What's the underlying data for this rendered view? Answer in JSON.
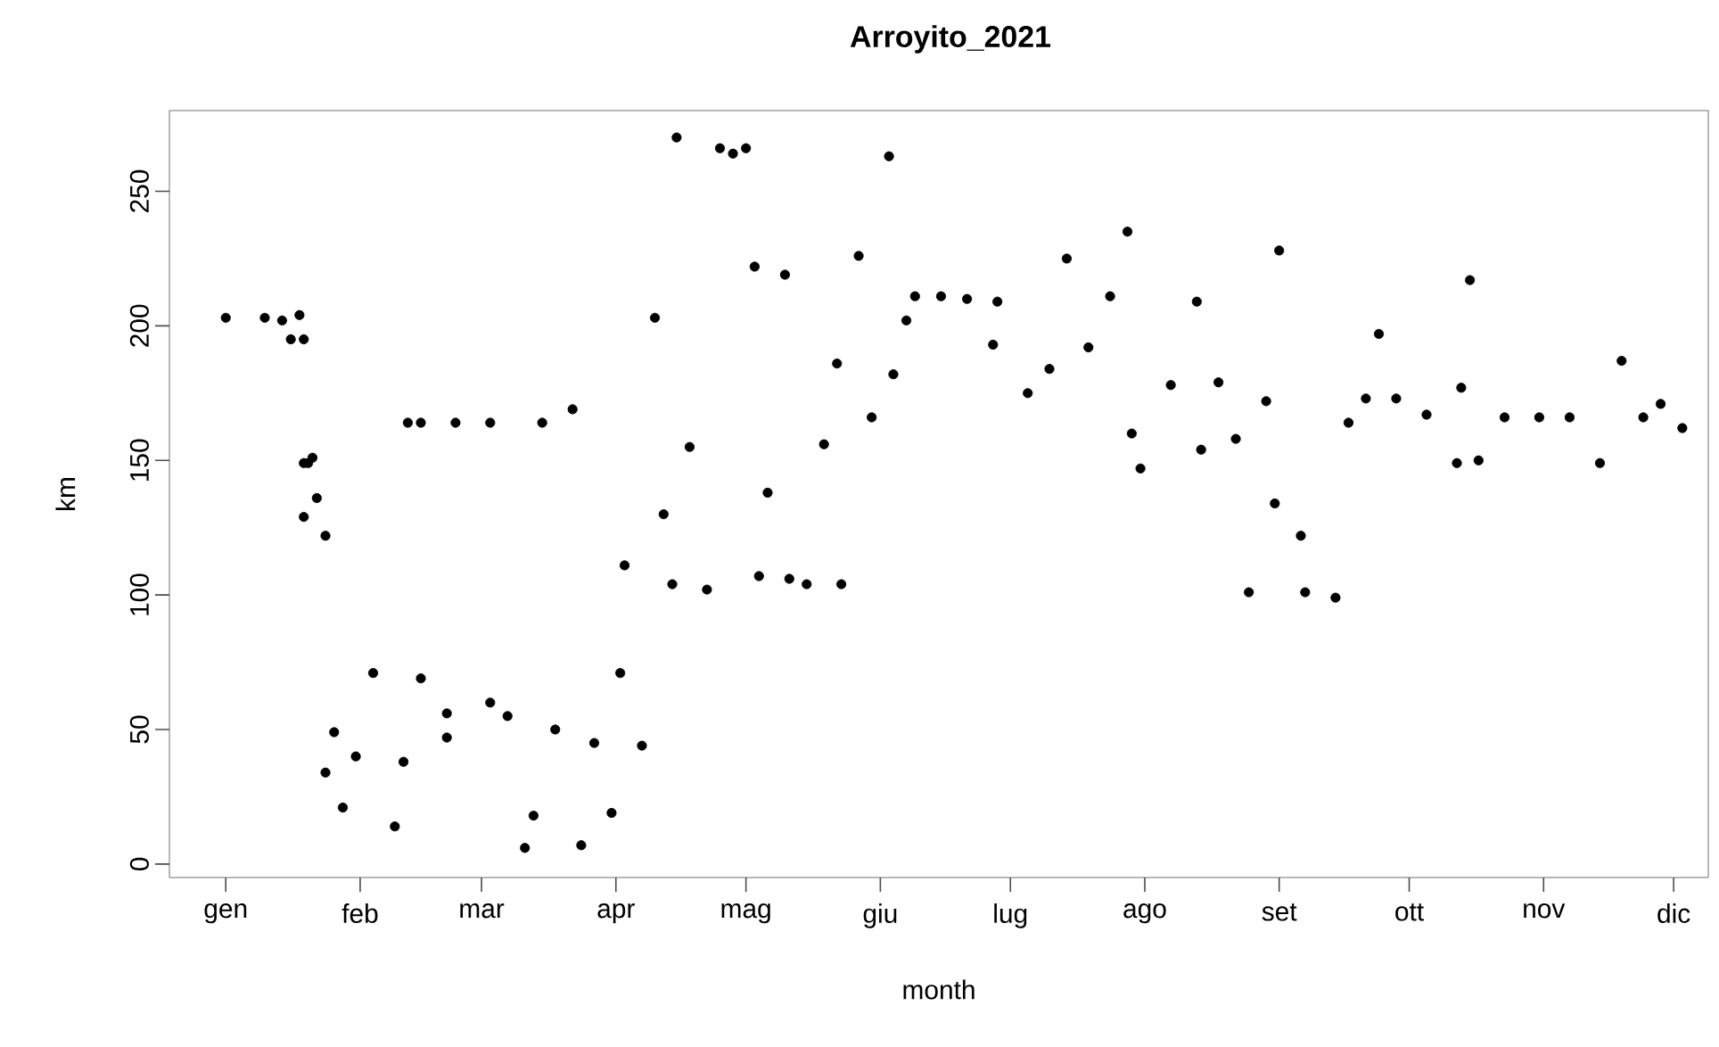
{
  "chart_data": {
    "type": "scatter",
    "title": "Arroyito_2021",
    "xlabel": "month",
    "ylabel": "km",
    "marker": "circle",
    "xlim": [
      "2020-12-19",
      "2021-12-09"
    ],
    "ylim": [
      -5,
      280
    ],
    "xticks": [
      {
        "value": "2021-01-01",
        "label": "gen"
      },
      {
        "value": "2021-02-01",
        "label": "feb"
      },
      {
        "value": "2021-03-01",
        "label": "mar"
      },
      {
        "value": "2021-04-01",
        "label": "apr"
      },
      {
        "value": "2021-05-01",
        "label": "mag"
      },
      {
        "value": "2021-06-01",
        "label": "giu"
      },
      {
        "value": "2021-07-01",
        "label": "lug"
      },
      {
        "value": "2021-08-01",
        "label": "ago"
      },
      {
        "value": "2021-09-01",
        "label": "set"
      },
      {
        "value": "2021-10-01",
        "label": "ott"
      },
      {
        "value": "2021-11-01",
        "label": "nov"
      },
      {
        "value": "2021-12-01",
        "label": "dic"
      }
    ],
    "yticks": [
      0,
      50,
      100,
      150,
      200,
      250
    ],
    "x": [
      "2021-01-01",
      "2021-01-10",
      "2021-01-14",
      "2021-01-16",
      "2021-01-18",
      "2021-01-19",
      "2021-01-19",
      "2021-01-19",
      "2021-01-20",
      "2021-01-21",
      "2021-01-22",
      "2021-01-24",
      "2021-01-24",
      "2021-01-26",
      "2021-01-28",
      "2021-01-31",
      "2021-02-04",
      "2021-02-09",
      "2021-02-11",
      "2021-02-12",
      "2021-02-15",
      "2021-02-15",
      "2021-02-21",
      "2021-02-21",
      "2021-02-23",
      "2021-03-03",
      "2021-03-03",
      "2021-03-07",
      "2021-03-11",
      "2021-03-13",
      "2021-03-15",
      "2021-03-18",
      "2021-03-22",
      "2021-03-24",
      "2021-03-27",
      "2021-03-31",
      "2021-04-02",
      "2021-04-03",
      "2021-04-07",
      "2021-04-10",
      "2021-04-12",
      "2021-04-14",
      "2021-04-15",
      "2021-04-18",
      "2021-04-22",
      "2021-04-25",
      "2021-04-28",
      "2021-05-01",
      "2021-05-03",
      "2021-05-04",
      "2021-05-06",
      "2021-05-10",
      "2021-05-11",
      "2021-05-15",
      "2021-05-19",
      "2021-05-22",
      "2021-05-23",
      "2021-05-27",
      "2021-05-30",
      "2021-06-03",
      "2021-06-04",
      "2021-06-07",
      "2021-06-09",
      "2021-06-15",
      "2021-06-21",
      "2021-06-27",
      "2021-06-28",
      "2021-07-05",
      "2021-07-10",
      "2021-07-14",
      "2021-07-19",
      "2021-07-24",
      "2021-07-28",
      "2021-07-29",
      "2021-07-31",
      "2021-08-07",
      "2021-08-13",
      "2021-08-14",
      "2021-08-18",
      "2021-08-22",
      "2021-08-25",
      "2021-08-29",
      "2021-08-31",
      "2021-09-01",
      "2021-09-06",
      "2021-09-07",
      "2021-09-14",
      "2021-09-17",
      "2021-09-21",
      "2021-09-24",
      "2021-09-28",
      "2021-10-05",
      "2021-10-12",
      "2021-10-13",
      "2021-10-15",
      "2021-10-17",
      "2021-10-23",
      "2021-10-31",
      "2021-11-07",
      "2021-11-14",
      "2021-11-19",
      "2021-11-24",
      "2021-11-28",
      "2021-12-03"
    ],
    "series": [
      {
        "color": "#000000",
        "values": [
          203,
          203,
          202,
          195,
          204,
          195,
          149,
          129,
          149,
          151,
          136,
          122,
          34,
          49,
          21,
          40,
          71,
          14,
          38,
          164,
          164,
          69,
          56,
          47,
          164,
          164,
          60,
          55,
          6,
          18,
          164,
          50,
          169,
          7,
          45,
          19,
          71,
          111,
          44,
          203,
          130,
          104,
          270,
          155,
          102,
          266,
          264,
          266,
          222,
          107,
          138,
          219,
          106,
          104,
          156,
          186,
          104,
          226,
          166,
          263,
          182,
          202,
          211,
          211,
          210,
          193,
          209,
          175,
          184,
          225,
          192,
          211,
          235,
          160,
          147,
          178,
          209,
          154,
          179,
          158,
          101,
          172,
          134,
          228,
          122,
          101,
          99,
          164,
          173,
          197,
          173,
          167,
          149,
          177,
          217,
          150,
          166,
          166,
          166,
          149,
          187,
          166,
          171,
          162
        ]
      }
    ]
  }
}
